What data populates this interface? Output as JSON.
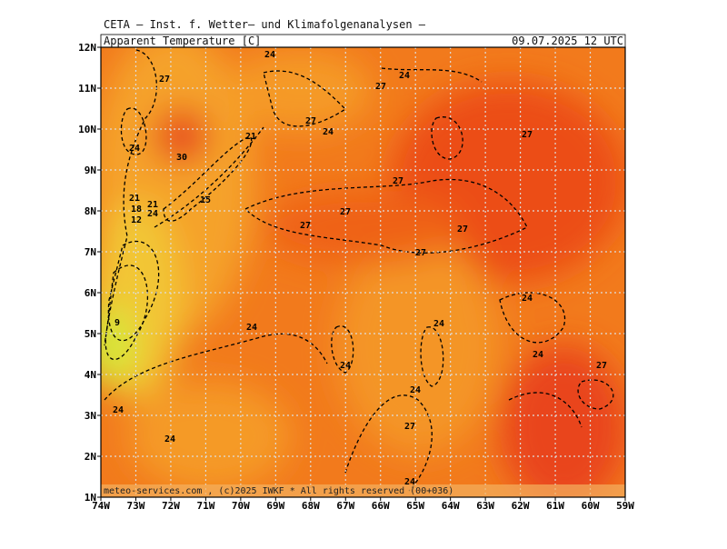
{
  "header": {
    "title": "CETA — Inst. f. Wetter— und Klimafolgenanalysen —",
    "variable": "Apparent_Temperature [C]",
    "valid_time": "09.07.2025 12 UTC"
  },
  "axes": {
    "lon_labels": [
      "74W",
      "73W",
      "72W",
      "71W",
      "70W",
      "69W",
      "68W",
      "67W",
      "66W",
      "65W",
      "64W",
      "63W",
      "62W",
      "61W",
      "60W",
      "59W"
    ],
    "lat_labels": [
      "12N",
      "11N",
      "10N",
      "9N",
      "8N",
      "7N",
      "6N",
      "5N",
      "4N",
      "3N",
      "2N",
      "1N"
    ]
  },
  "contour_labels": [
    "27",
    "24",
    "24",
    "27",
    "27",
    "24",
    "27",
    "24",
    "30",
    "21",
    "27",
    "21",
    "18",
    "12",
    "21",
    "24",
    "15",
    "27",
    "27",
    "27",
    "27",
    "24",
    "9",
    "24",
    "24",
    "24",
    "24",
    "27",
    "24",
    "24",
    "27",
    "24",
    "24"
  ],
  "footer": "meteo-services.com , (c)2025 IWKF * All rights reserved (00+036)"
}
